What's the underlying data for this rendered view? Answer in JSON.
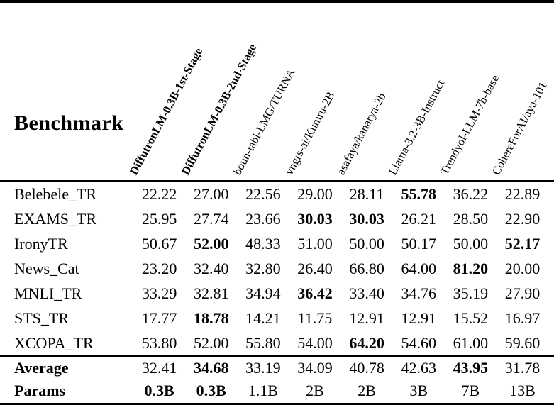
{
  "table": {
    "corner_label": "Benchmark",
    "columns": [
      {
        "label": "DiffutronLM-0.3B-1st-Stage",
        "bold": true
      },
      {
        "label": "DiffutronLM-0.3B-2nd-Stage",
        "bold": true
      },
      {
        "label": "boun-tabi-LMG/TURNA",
        "bold": false
      },
      {
        "label": "vngrs-ai/Kumru-2B",
        "bold": false
      },
      {
        "label": "asafaya/kanarya-2b",
        "bold": false
      },
      {
        "label": "Llama-3.2-3B-Instruct",
        "bold": false
      },
      {
        "label": "Trendyol-LLM-7b-base",
        "bold": false
      },
      {
        "label": "CohereForAI/aya-101",
        "bold": false
      }
    ],
    "rows": [
      {
        "label": "Belebele_TR",
        "bold_label": false,
        "values": [
          "22.22",
          "27.00",
          "22.56",
          "29.00",
          "28.11",
          "55.78",
          "36.22",
          "22.89"
        ],
        "bold": [
          5
        ]
      },
      {
        "label": "EXAMS_TR",
        "bold_label": false,
        "values": [
          "25.95",
          "27.74",
          "23.66",
          "30.03",
          "30.03",
          "26.21",
          "28.50",
          "22.90"
        ],
        "bold": [
          3,
          4
        ]
      },
      {
        "label": "IronyTR",
        "bold_label": false,
        "values": [
          "50.67",
          "52.00",
          "48.33",
          "51.00",
          "50.00",
          "50.17",
          "50.00",
          "52.17"
        ],
        "bold": [
          1,
          7
        ]
      },
      {
        "label": "News_Cat",
        "bold_label": false,
        "values": [
          "23.20",
          "32.40",
          "32.80",
          "26.40",
          "66.80",
          "64.00",
          "81.20",
          "20.00"
        ],
        "bold": [
          6
        ]
      },
      {
        "label": "MNLI_TR",
        "bold_label": false,
        "values": [
          "33.29",
          "32.81",
          "34.94",
          "36.42",
          "33.40",
          "34.76",
          "35.19",
          "27.90"
        ],
        "bold": [
          3
        ]
      },
      {
        "label": "STS_TR",
        "bold_label": false,
        "values": [
          "17.77",
          "18.78",
          "14.21",
          "11.75",
          "12.91",
          "12.91",
          "15.52",
          "16.97"
        ],
        "bold": [
          1
        ]
      },
      {
        "label": "XCOPA_TR",
        "bold_label": false,
        "values": [
          "53.80",
          "52.00",
          "55.80",
          "54.00",
          "64.20",
          "54.60",
          "61.00",
          "59.60"
        ],
        "bold": [
          4
        ]
      }
    ],
    "footer_rows": [
      {
        "label": "Average",
        "bold_label": true,
        "values": [
          "32.41",
          "34.68",
          "33.19",
          "34.09",
          "40.78",
          "42.63",
          "43.95",
          "31.78"
        ],
        "bold": [
          1,
          6
        ]
      },
      {
        "label": "Params",
        "bold_label": true,
        "values": [
          "0.3B",
          "0.3B",
          "1.1B",
          "2B",
          "2B",
          "3B",
          "7B",
          "13B"
        ],
        "bold": [
          0,
          1
        ]
      }
    ],
    "colors": {
      "text": "#000000",
      "background": "#ffffff",
      "rule": "#000000"
    }
  }
}
